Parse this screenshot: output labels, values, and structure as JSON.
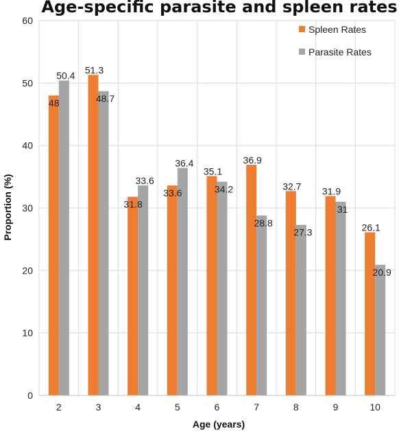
{
  "chart_data": {
    "type": "bar",
    "title": "Age-specific parasite and spleen rates",
    "xlabel": "Age (years)",
    "ylabel": "Proportion (%)",
    "ylim": [
      0,
      60
    ],
    "yticks": [
      0,
      10,
      20,
      30,
      40,
      50,
      60
    ],
    "categories": [
      "2",
      "3",
      "4",
      "5",
      "6",
      "7",
      "8",
      "9",
      "10"
    ],
    "series": [
      {
        "name": "Spleen Rates",
        "color": "#ED7D31",
        "values": [
          48,
          51.3,
          31.8,
          33.6,
          35.1,
          36.9,
          32.7,
          31.9,
          26.1
        ],
        "labels": [
          "48",
          "51.3",
          "31.8",
          "33.6",
          "35.1",
          "36.9",
          "32.7",
          "31.9",
          "26.1"
        ]
      },
      {
        "name": "Parasite Rates",
        "color": "#A5A5A5",
        "values": [
          50.4,
          48.7,
          33.6,
          36.4,
          34.2,
          28.8,
          27.3,
          31,
          20.9
        ],
        "labels": [
          "50.4",
          "48.7",
          "33.6",
          "36.4",
          "34.2",
          "28.8",
          "27.3",
          "31",
          "20.9"
        ]
      }
    ],
    "grid": true,
    "legend": "top-right"
  }
}
